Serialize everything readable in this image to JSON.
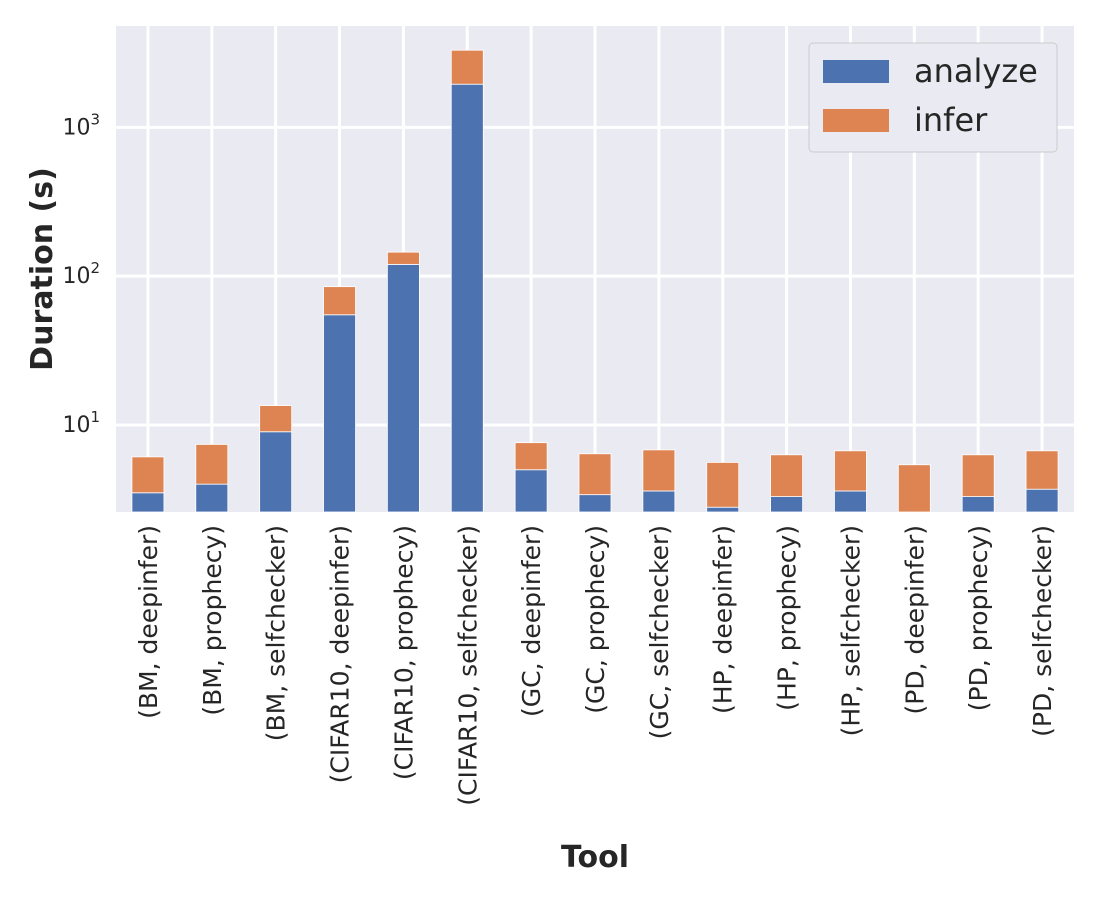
{
  "chart_data": {
    "type": "bar",
    "stacked": true,
    "yscale": "log",
    "categories": [
      "(BM, deepinfer)",
      "(BM, prophecy)",
      "(BM, selfchecker)",
      "(CIFAR10, deepinfer)",
      "(CIFAR10, prophecy)",
      "(CIFAR10, selfchecker)",
      "(GC, deepinfer)",
      "(GC, prophecy)",
      "(GC, selfchecker)",
      "(HP, deepinfer)",
      "(HP, prophecy)",
      "(HP, selfchecker)",
      "(PD, deepinfer)",
      "(PD, prophecy)",
      "(PD, selfchecker)"
    ],
    "series": [
      {
        "name": "analyze",
        "color": "#4c72b0",
        "values": [
          3.5,
          4.0,
          9.0,
          55,
          120,
          1950,
          5.0,
          3.4,
          3.6,
          2.8,
          3.3,
          3.6,
          2.6,
          3.3,
          3.7
        ]
      },
      {
        "name": "infer",
        "color": "#dd8452",
        "values": [
          2.6,
          3.4,
          4.5,
          30,
          25,
          1350,
          2.6,
          3.0,
          3.2,
          2.8,
          3.0,
          3.1,
          2.8,
          3.0,
          3.0
        ]
      }
    ],
    "title": "",
    "xlabel": "Tool",
    "ylabel": "Duration (s)",
    "ylim": [
      2.6,
      4800
    ],
    "yticks": [
      {
        "value": 10,
        "base": "10",
        "exp": "1"
      },
      {
        "value": 100,
        "base": "10",
        "exp": "2"
      },
      {
        "value": 1000,
        "base": "10",
        "exp": "3"
      }
    ],
    "grid": true,
    "legend_position": "top-right"
  }
}
